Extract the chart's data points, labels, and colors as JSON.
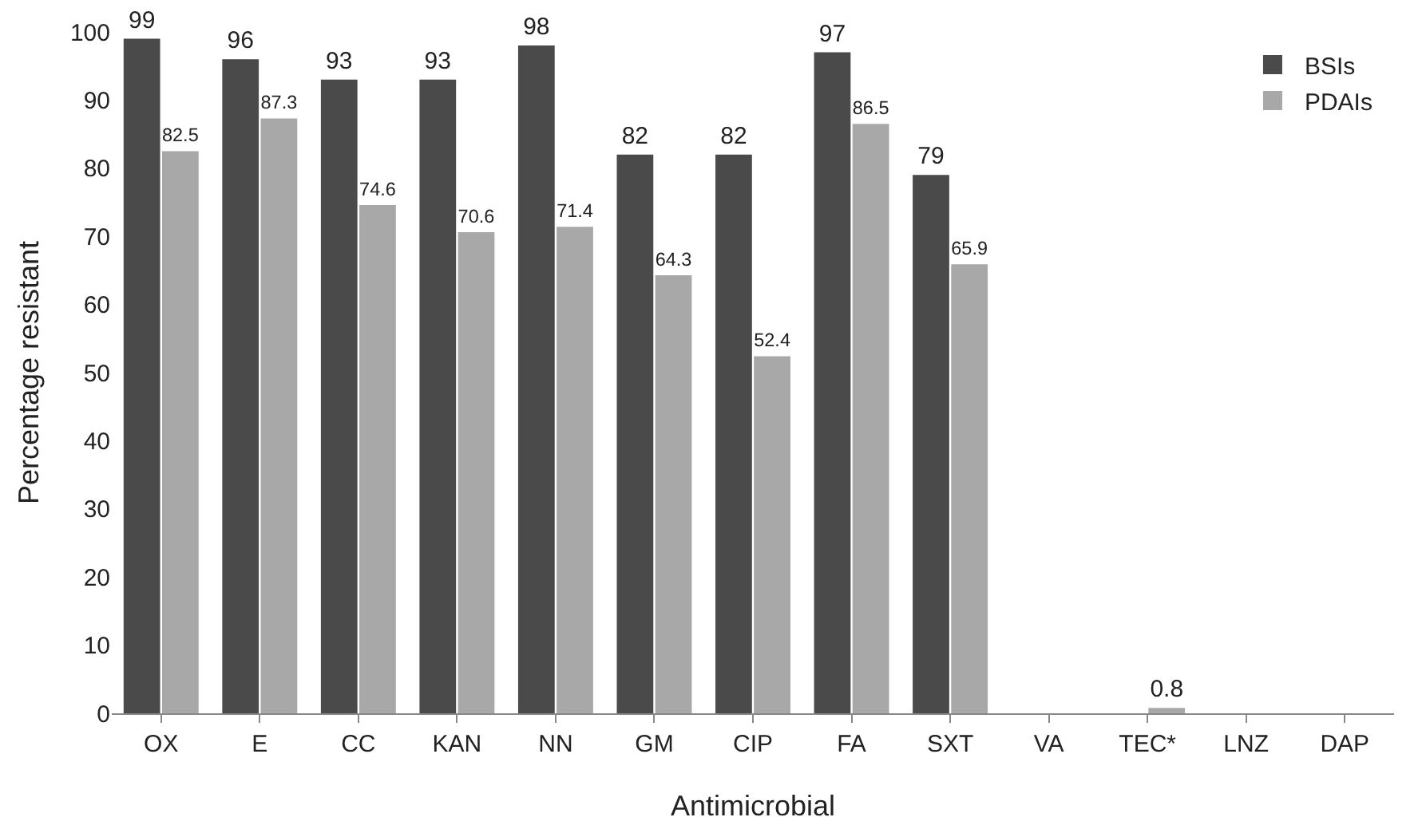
{
  "chart_data": {
    "type": "bar",
    "xlabel": "Antimicrobial",
    "ylabel": "Percentage resistant",
    "categories": [
      "OX",
      "E",
      "CC",
      "KAN",
      "NN",
      "GM",
      "CIP",
      "FA",
      "SXT",
      "VA",
      "TEC*",
      "LNZ",
      "DAP"
    ],
    "series": [
      {
        "name": "BSIs",
        "color": "#4a4a4a",
        "values": [
          99,
          96,
          93,
          93,
          98,
          82,
          82,
          97,
          79,
          0,
          0,
          0,
          0
        ],
        "value_labels": [
          "99",
          "96",
          "93",
          "93",
          "98",
          "82",
          "82",
          "97",
          "79",
          null,
          null,
          null,
          null
        ]
      },
      {
        "name": "PDAIs",
        "color": "#a8a8a8",
        "values": [
          82.5,
          87.3,
          74.6,
          70.6,
          71.4,
          64.3,
          52.4,
          86.5,
          65.9,
          0,
          0.8,
          0,
          0
        ],
        "value_labels": [
          "82.5",
          "87.3",
          "74.6",
          "70.6",
          "71.4",
          "64.3",
          "52.4",
          "86.5",
          "65.9",
          null,
          "0.8",
          null,
          null
        ]
      }
    ],
    "ylim": [
      0,
      100
    ],
    "yticks": [
      0,
      10,
      20,
      30,
      40,
      50,
      60,
      70,
      80,
      90,
      100
    ],
    "grid": false,
    "legend": "top right"
  }
}
